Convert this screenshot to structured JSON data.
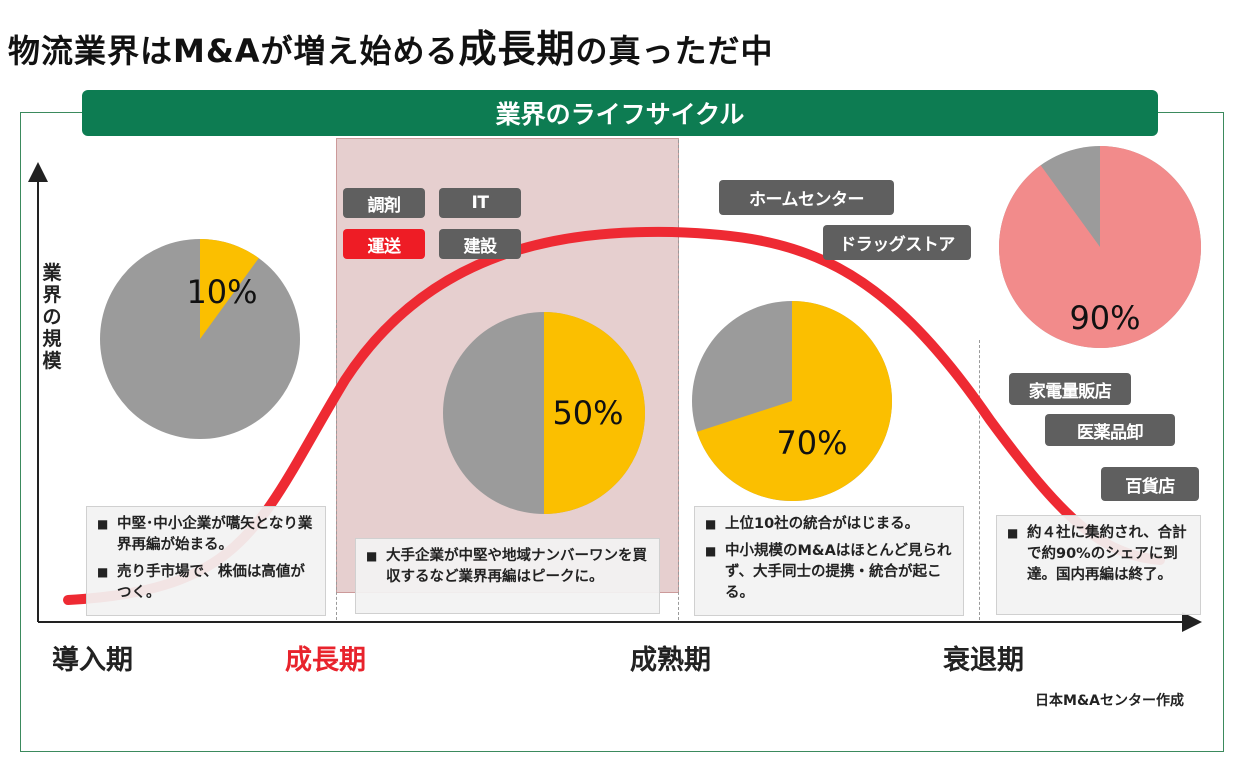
{
  "title": {
    "part1": "物流業界はM&Aが増え始める",
    "part2": "成長期",
    "part3": "の真っただ中"
  },
  "banner": "業界のライフサイクル",
  "axis": {
    "y_label": [
      "業",
      "界",
      "の",
      "規",
      "模"
    ]
  },
  "phases": [
    "導入期",
    "成長期",
    "成熟期",
    "衰退期"
  ],
  "tags": {
    "growth": [
      "調剤",
      "IT",
      "運送",
      "建設"
    ],
    "maturity": [
      "ホームセンター",
      "ドラッグストア"
    ],
    "decline": [
      "家電量販店",
      "医薬品卸",
      "百貨店"
    ]
  },
  "pies": [
    {
      "label": "10%",
      "share": 0.1
    },
    {
      "label": "50%",
      "share": 0.5
    },
    {
      "label": "70%",
      "share": 0.7
    },
    {
      "label": "90%",
      "share": 0.9
    }
  ],
  "notes": {
    "intro": [
      "中堅･中小企業が嚆矢となり業界再編が始まる。",
      "売り手市場で、株価は高値がつく。"
    ],
    "growth": [
      "大手企業が中堅や地域ナンバーワンを買収するなど業界再編はピークに。"
    ],
    "maturity": [
      "上位10社の統合がはじまる。",
      "中小規模のM&Aはほとんど見られず、大手同士の提携・統合が起こる。"
    ],
    "decline": [
      "約４社に集約され、合計で約90%のシェアに到達。国内再編は終了。"
    ]
  },
  "bullet_char": "■",
  "credit": "日本M&Aセンター作成",
  "colors": {
    "green": "#0d7c52",
    "red": "#e8232c",
    "gray": "#9b9b9b",
    "yellow": "#fbbf00",
    "pink": "#f28b8b",
    "band": "#e6cfcf"
  }
}
